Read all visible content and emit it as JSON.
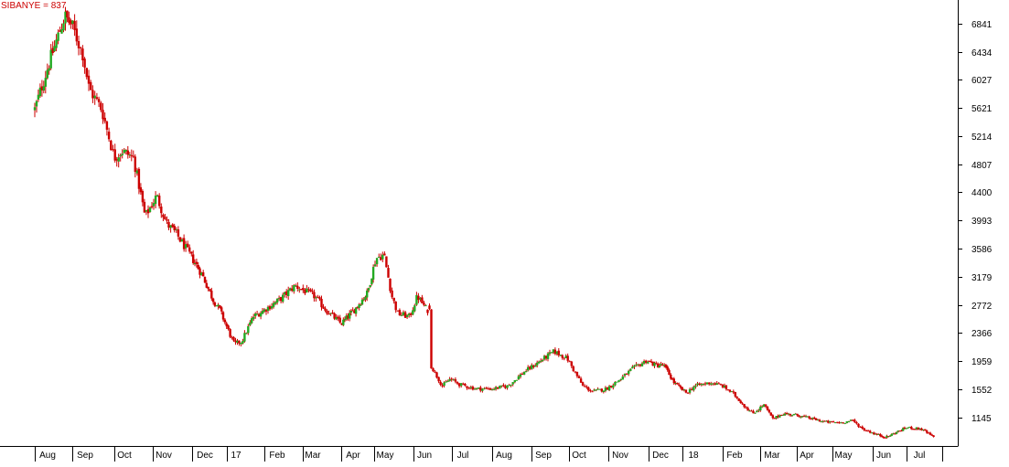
{
  "chart_data": {
    "type": "candlestick",
    "title": "SIBANYE = 837",
    "y_ticks": [
      "6841",
      "6434",
      "6027",
      "5621",
      "5214",
      "4807",
      "4400",
      "3993",
      "3586",
      "3179",
      "2772",
      "2366",
      "1959",
      "1552",
      "1145"
    ],
    "ylim": [
      837,
      7200
    ],
    "x_labels": [
      "Aug",
      "Sep",
      "Oct",
      "Nov",
      "Dec",
      "17",
      "Feb",
      "Mar",
      "Apr",
      "May",
      "Jun",
      "Jul",
      "Aug",
      "Sep",
      "Oct",
      "Nov",
      "Dec",
      "18",
      "Feb",
      "Mar",
      "Apr",
      "May",
      "Jun",
      "Jul"
    ],
    "grid": false,
    "colors": {
      "up": "#22aa22",
      "down": "#cc0000",
      "axis": "#000000",
      "title": "#cc0000"
    },
    "series": [
      {
        "values": [
          {
            "m": 0,
            "c": 5600
          },
          {
            "m": 0.4,
            "c": 6300
          },
          {
            "m": 0.8,
            "c": 6950
          },
          {
            "m": 1.0,
            "c": 6800
          },
          {
            "m": 1.25,
            "c": 6400
          },
          {
            "m": 1.4,
            "c": 5900
          },
          {
            "m": 1.7,
            "c": 5600
          },
          {
            "m": 2.0,
            "c": 4900
          },
          {
            "m": 2.2,
            "c": 5000
          },
          {
            "m": 2.5,
            "c": 4900
          },
          {
            "m": 2.8,
            "c": 4050
          },
          {
            "m": 3.1,
            "c": 4350
          },
          {
            "m": 3.35,
            "c": 3950
          },
          {
            "m": 3.6,
            "c": 3800
          },
          {
            "m": 4.0,
            "c": 3450
          },
          {
            "m": 4.3,
            "c": 3200
          },
          {
            "m": 4.6,
            "c": 2850
          },
          {
            "m": 4.8,
            "c": 2700
          },
          {
            "m": 5.2,
            "c": 2200
          },
          {
            "m": 5.4,
            "c": 2250
          },
          {
            "m": 5.7,
            "c": 2600
          },
          {
            "m": 6.0,
            "c": 2700
          },
          {
            "m": 6.4,
            "c": 2850
          },
          {
            "m": 6.8,
            "c": 3050
          },
          {
            "m": 7.3,
            "c": 2900
          },
          {
            "m": 7.6,
            "c": 2700
          },
          {
            "m": 8.0,
            "c": 2500
          },
          {
            "m": 8.4,
            "c": 2700
          },
          {
            "m": 8.8,
            "c": 2950
          },
          {
            "m": 9.05,
            "c": 3450
          },
          {
            "m": 9.25,
            "c": 3500
          },
          {
            "m": 9.45,
            "c": 2900
          },
          {
            "m": 9.6,
            "c": 2650
          },
          {
            "m": 9.9,
            "c": 2600
          },
          {
            "m": 10.1,
            "c": 2900
          },
          {
            "m": 10.35,
            "c": 2700
          },
          {
            "m": 10.45,
            "c": 1900
          },
          {
            "m": 10.75,
            "c": 1600
          },
          {
            "m": 10.95,
            "c": 1700
          },
          {
            "m": 11.2,
            "c": 1620
          },
          {
            "m": 11.6,
            "c": 1560
          },
          {
            "m": 12.0,
            "c": 1560
          },
          {
            "m": 12.4,
            "c": 1600
          },
          {
            "m": 12.8,
            "c": 1800
          },
          {
            "m": 13.2,
            "c": 1950
          },
          {
            "m": 13.6,
            "c": 2100
          },
          {
            "m": 13.95,
            "c": 2000
          },
          {
            "m": 14.35,
            "c": 1600
          },
          {
            "m": 14.6,
            "c": 1520
          },
          {
            "m": 14.95,
            "c": 1560
          },
          {
            "m": 15.3,
            "c": 1700
          },
          {
            "m": 15.6,
            "c": 1850
          },
          {
            "m": 15.95,
            "c": 1970
          },
          {
            "m": 16.2,
            "c": 1900
          },
          {
            "m": 16.45,
            "c": 1900
          },
          {
            "m": 16.75,
            "c": 1650
          },
          {
            "m": 17.1,
            "c": 1500
          },
          {
            "m": 17.3,
            "c": 1600
          },
          {
            "m": 17.7,
            "c": 1650
          },
          {
            "m": 18.0,
            "c": 1600
          },
          {
            "m": 18.3,
            "c": 1480
          },
          {
            "m": 18.6,
            "c": 1300
          },
          {
            "m": 18.8,
            "c": 1200
          },
          {
            "m": 19.1,
            "c": 1330
          },
          {
            "m": 19.35,
            "c": 1120
          },
          {
            "m": 19.6,
            "c": 1200
          },
          {
            "m": 20.0,
            "c": 1180
          },
          {
            "m": 20.4,
            "c": 1130
          },
          {
            "m": 20.8,
            "c": 1080
          },
          {
            "m": 21.2,
            "c": 1070
          },
          {
            "m": 21.5,
            "c": 1100
          },
          {
            "m": 21.75,
            "c": 980
          },
          {
            "m": 22.1,
            "c": 900
          },
          {
            "m": 22.4,
            "c": 860
          },
          {
            "m": 22.65,
            "c": 920
          },
          {
            "m": 23.0,
            "c": 1000
          },
          {
            "m": 23.4,
            "c": 980
          },
          {
            "m": 23.65,
            "c": 900
          },
          {
            "m": 23.8,
            "c": 837
          }
        ]
      }
    ]
  }
}
